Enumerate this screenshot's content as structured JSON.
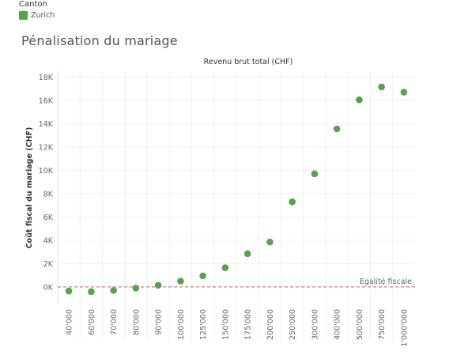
{
  "legend": {
    "title": "Canton",
    "items": [
      {
        "label": "Zurich",
        "color": "#59a14f"
      }
    ]
  },
  "chart_data": {
    "type": "scatter",
    "title": "Pénalisation du mariage",
    "xlabel": "Revenu brut total (CHF)",
    "ylabel": "Coût fiscal du mariage (CHF)",
    "categories": [
      "40'000",
      "60'000",
      "70'000",
      "80'000",
      "90'000",
      "100'000",
      "125'000",
      "150'000",
      "175'000",
      "200'000",
      "250'000",
      "300'000",
      "400'000",
      "500'000",
      "750'000",
      "1'000'000"
    ],
    "series": [
      {
        "name": "Zurich",
        "color": "#59a14f",
        "values": [
          -350,
          -400,
          -300,
          -100,
          150,
          500,
          950,
          1650,
          2850,
          3850,
          7300,
          9700,
          13550,
          16050,
          17150,
          16700
        ]
      }
    ],
    "ylim": [
      -1500,
      18500
    ],
    "yticks": [
      0,
      2000,
      4000,
      6000,
      8000,
      10000,
      12000,
      14000,
      16000,
      18000
    ],
    "ytick_labels": [
      "0K",
      "2K",
      "4K",
      "6K",
      "8K",
      "10K",
      "12K",
      "14K",
      "16K",
      "18K"
    ],
    "grid": true,
    "reference_line": {
      "value": 0,
      "label": "Egalité fiscale",
      "color": "#e15759"
    }
  }
}
